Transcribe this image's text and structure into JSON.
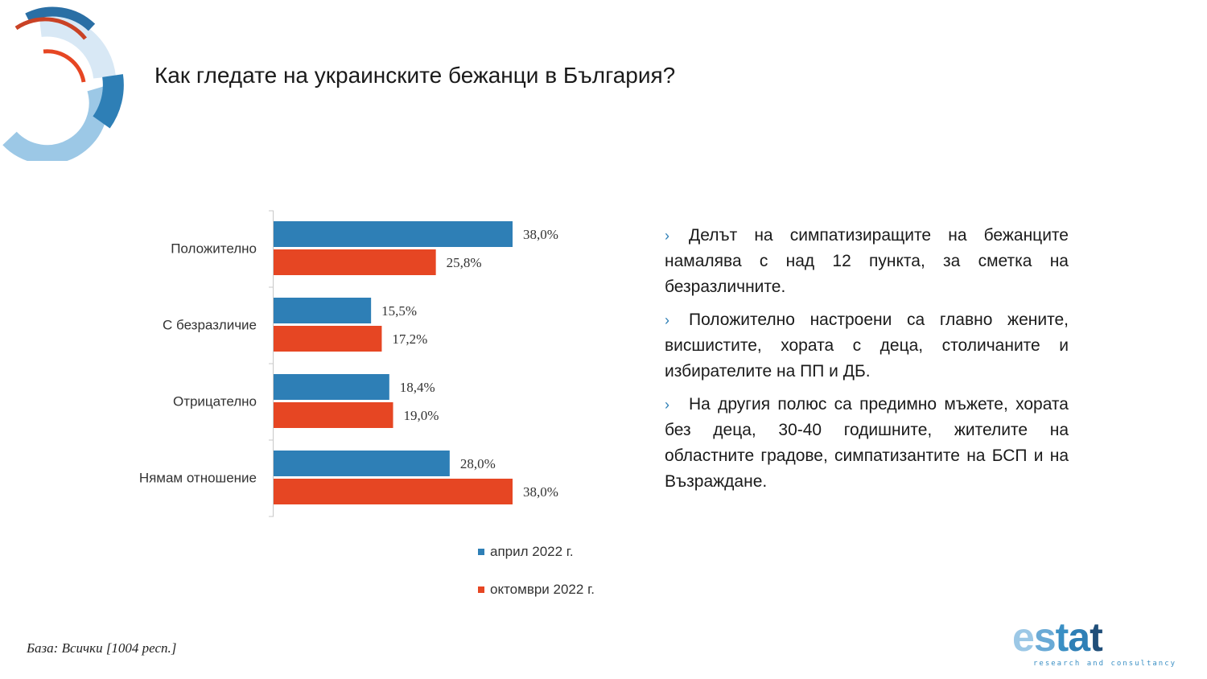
{
  "title": "Как гледате на украинските бежанци в България?",
  "colors": {
    "april": "#2e7fb6",
    "october": "#e64623",
    "logo_dark_blue": "#2a6fa5",
    "logo_light_blue": "#9cc8e6",
    "logo_pale_blue": "#d8e8f5",
    "logo_red": "#c94225"
  },
  "chart_data": {
    "type": "bar",
    "orientation": "horizontal",
    "categories": [
      "Положително",
      "С безразличие",
      "Отрицателно",
      "Нямам отношение"
    ],
    "series": [
      {
        "name": "април 2022 г.",
        "values": [
          38.0,
          15.5,
          18.4,
          28.0
        ],
        "labels": [
          "38,0%",
          "15,5%",
          "18,4%",
          "28,0%"
        ]
      },
      {
        "name": "октомври 2022 г.",
        "values": [
          25.8,
          17.2,
          19.0,
          38.0
        ],
        "labels": [
          "25,8%",
          "17,2%",
          "19,0%",
          "38,0%"
        ]
      }
    ],
    "xlim": [
      0,
      38.0
    ],
    "grid": false,
    "legend_position": "bottom"
  },
  "bullets": [
    "Делът на симпатизиращите на бежанците намалява с над 12 пункта, за сметка на безразличните.",
    "Положително настроени са главно жените, висшистите, хората с деца, столичаните и избирателите на ПП и ДБ.",
    "На другия полюс са предимно мъжете, хората без деца, 30-40 годишните, жителите на областните градове, симпатизантите на БСП и на Възраждане."
  ],
  "bullet_marker": "›",
  "footer": "База: Всички [1004 респ.]",
  "brand": {
    "letters": [
      "e",
      "s",
      "t",
      "a",
      "t"
    ],
    "tagline": "research and consultancy"
  }
}
